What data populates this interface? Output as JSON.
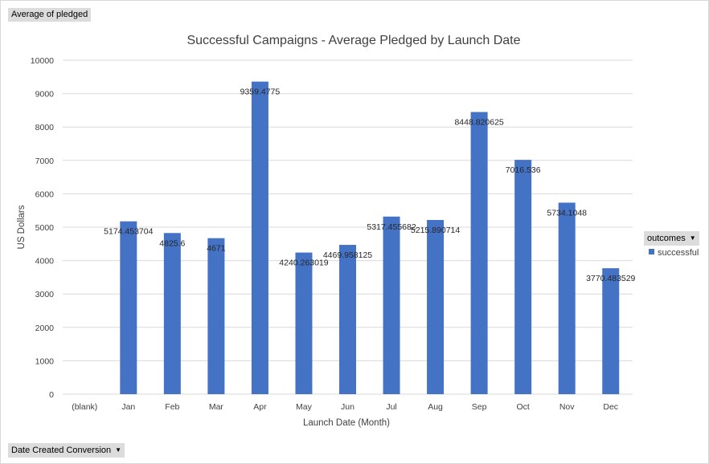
{
  "pivot": {
    "value_field": "Average of pledged",
    "axis_field": "Date Created Conversion",
    "legend_field": "outcomes",
    "dropdown_icon": "triangle-down-icon"
  },
  "colors": {
    "bar": "#4472c4",
    "grid": "#d9d9d9",
    "text": "#404040"
  },
  "chart_data": {
    "type": "bar",
    "title": "Successful Campaigns - Average Pledged by Launch Date",
    "xlabel": "Launch Date (Month)",
    "ylabel": "US Dollars",
    "ylim": [
      0,
      10000
    ],
    "yticks": [
      0,
      1000,
      2000,
      3000,
      4000,
      5000,
      6000,
      7000,
      8000,
      9000,
      10000
    ],
    "grid": true,
    "legend_position": "right",
    "categories": [
      "(blank)",
      "Jan",
      "Feb",
      "Mar",
      "Apr",
      "May",
      "Jun",
      "Jul",
      "Aug",
      "Sep",
      "Oct",
      "Nov",
      "Dec"
    ],
    "series": [
      {
        "name": "successful",
        "values": [
          null,
          5174.453704,
          4825.6,
          4671,
          9359.4775,
          4240.263019,
          4469.958125,
          5317.455682,
          5215.890714,
          8448.820625,
          7016.536,
          5734.1048,
          3770.483529
        ],
        "labels": [
          "",
          "5174.453704",
          "4825.6",
          "4671",
          "9359.4775",
          "4240.263019",
          "4469.958125",
          "5317.455682",
          "5215.890714",
          "8448.820625",
          "7016.536",
          "5734.1048",
          "3770.483529"
        ]
      }
    ]
  }
}
